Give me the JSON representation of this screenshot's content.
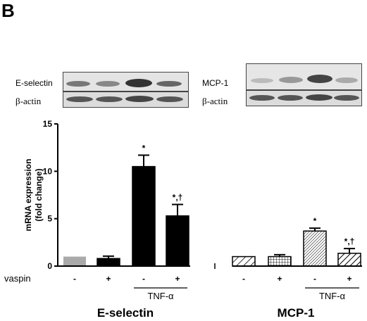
{
  "panel_label": "B",
  "blots": {
    "left": {
      "target_label": "E-selectin",
      "control_label": "β-actin"
    },
    "right": {
      "target_label": "MCP-1",
      "control_label": "β-actin"
    }
  },
  "chart_data": {
    "type": "bar",
    "ylabel_line1": "mRNA expression",
    "ylabel_line2": "(fold change)",
    "ylim": [
      0,
      15
    ],
    "yticks": [
      0,
      5,
      10,
      15
    ],
    "treatment_row_label": "vaspin",
    "treatment_signs": [
      "-",
      "+",
      "-",
      "+",
      "-",
      "+",
      "-",
      "+"
    ],
    "stimulus_label": "TNF-α",
    "groups": [
      "E-selectin",
      "MCP-1"
    ],
    "bars": [
      {
        "group": "E-selectin",
        "vaspin": "-",
        "tnf": false,
        "value": 1.0,
        "error": 0.0,
        "fill": "#aaaaaa",
        "pattern": "solid",
        "annotation": ""
      },
      {
        "group": "E-selectin",
        "vaspin": "+",
        "tnf": false,
        "value": 0.8,
        "error": 0.25,
        "fill": "#000000",
        "pattern": "solid",
        "annotation": ""
      },
      {
        "group": "E-selectin",
        "vaspin": "-",
        "tnf": true,
        "value": 10.5,
        "error": 1.2,
        "fill": "#000000",
        "pattern": "solid",
        "annotation": "*"
      },
      {
        "group": "E-selectin",
        "vaspin": "+",
        "tnf": true,
        "value": 5.3,
        "error": 1.2,
        "fill": "#000000",
        "pattern": "solid",
        "annotation": "*,†"
      },
      {
        "group": "MCP-1",
        "vaspin": "-",
        "tnf": false,
        "value": 1.0,
        "error": 0.0,
        "fill": "#ffffff",
        "pattern": "diag-sparse",
        "annotation": ""
      },
      {
        "group": "MCP-1",
        "vaspin": "+",
        "tnf": false,
        "value": 1.0,
        "error": 0.2,
        "fill": "#ffffff",
        "pattern": "grid",
        "annotation": ""
      },
      {
        "group": "MCP-1",
        "vaspin": "-",
        "tnf": true,
        "value": 3.7,
        "error": 0.3,
        "fill": "#ffffff",
        "pattern": "diag-dense",
        "annotation": "*"
      },
      {
        "group": "MCP-1",
        "vaspin": "+",
        "tnf": true,
        "value": 1.35,
        "error": 0.5,
        "fill": "#ffffff",
        "pattern": "diag-wide",
        "annotation": "*,†"
      }
    ]
  }
}
